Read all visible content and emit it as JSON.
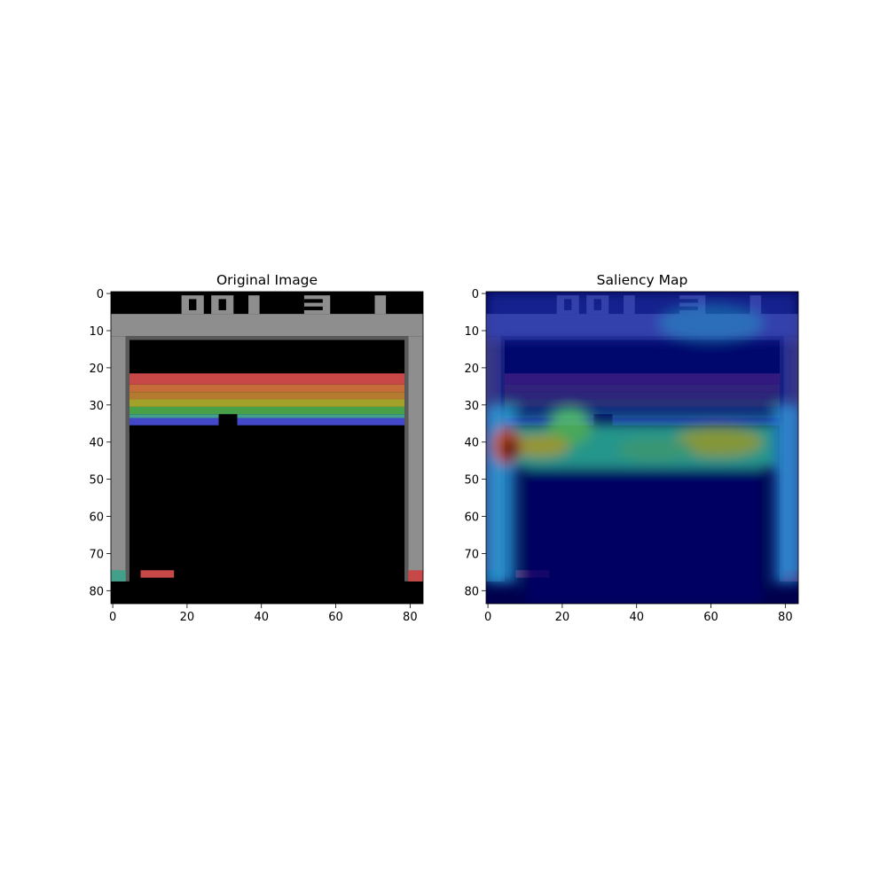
{
  "chart_data": [
    {
      "type": "image",
      "title": "Original Image",
      "xlim": [
        -0.5,
        83.5
      ],
      "ylim": [
        83.5,
        -0.5
      ],
      "xticks": [
        0,
        20,
        40,
        60,
        80
      ],
      "yticks": [
        0,
        10,
        20,
        30,
        40,
        50,
        60,
        70,
        80
      ]
    },
    {
      "type": "image",
      "title": "Saliency Map",
      "xlim": [
        -0.5,
        83.5
      ],
      "ylim": [
        83.5,
        -0.5
      ],
      "xticks": [
        0,
        20,
        40,
        60,
        80
      ],
      "yticks": [
        0,
        10,
        20,
        30,
        40,
        50,
        60,
        70,
        80
      ]
    }
  ]
}
